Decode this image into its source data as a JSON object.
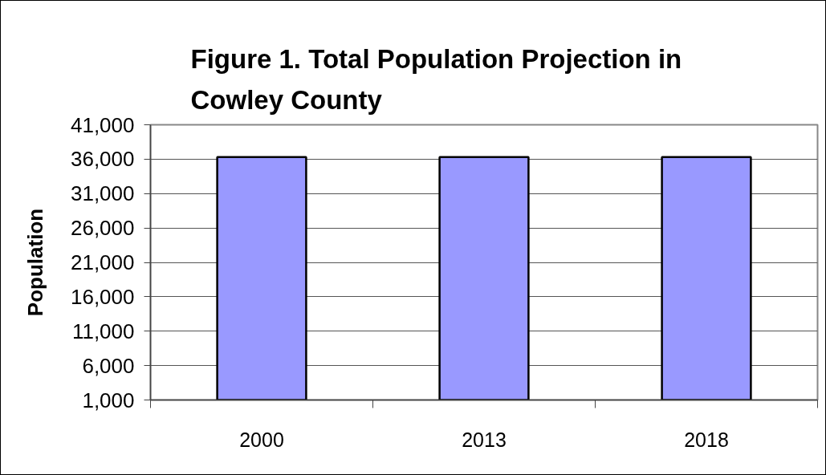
{
  "chart_data": {
    "type": "bar",
    "title": "Figure 1. Total Population Projection in Cowley County",
    "ylabel": "Population",
    "categories": [
      "2000",
      "2013",
      "2018"
    ],
    "values": [
      36300,
      36300,
      36300
    ],
    "color": "#9999ff",
    "ylim": [
      1000,
      41000
    ],
    "yticks": [
      {
        "value": 1000,
        "label": "1,000"
      },
      {
        "value": 6000,
        "label": "6,000"
      },
      {
        "value": 11000,
        "label": "11,000"
      },
      {
        "value": 16000,
        "label": "16,000"
      },
      {
        "value": 21000,
        "label": "21,000"
      },
      {
        "value": 26000,
        "label": "26,000"
      },
      {
        "value": 31000,
        "label": "31,000"
      },
      {
        "value": 36000,
        "label": "36,000"
      },
      {
        "value": 41000,
        "label": "41,000"
      }
    ],
    "grid": "y"
  }
}
